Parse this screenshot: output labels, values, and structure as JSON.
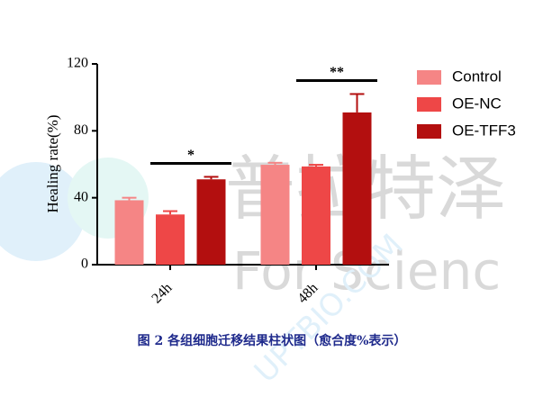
{
  "chart_data": {
    "type": "bar",
    "y_label": "Healing rate(%)",
    "categories": [
      "24h",
      "48h"
    ],
    "series": [
      {
        "name": "Control",
        "color": "#f58585",
        "values": [
          38.5,
          59.7
        ],
        "errors": [
          1.5,
          1.2
        ]
      },
      {
        "name": "OE-NC",
        "color": "#ee4747",
        "values": [
          30,
          58.7
        ],
        "errors": [
          2,
          1
        ]
      },
      {
        "name": "OE-TFF3",
        "color": "#b30f0f",
        "values": [
          51,
          91
        ],
        "errors": [
          1.5,
          11
        ]
      }
    ],
    "ylim": [
      0,
      120
    ],
    "yticks": [
      0,
      40,
      80,
      120
    ],
    "annotations": [
      {
        "text": "*",
        "category": 0
      },
      {
        "text": "**",
        "category": 1
      }
    ],
    "caption": "图 2  各组细胞迁移结果柱状图（愈合度%表示）",
    "watermark": [
      "普拉特泽",
      "For Scienc",
      "UPTBIO.COM"
    ]
  }
}
